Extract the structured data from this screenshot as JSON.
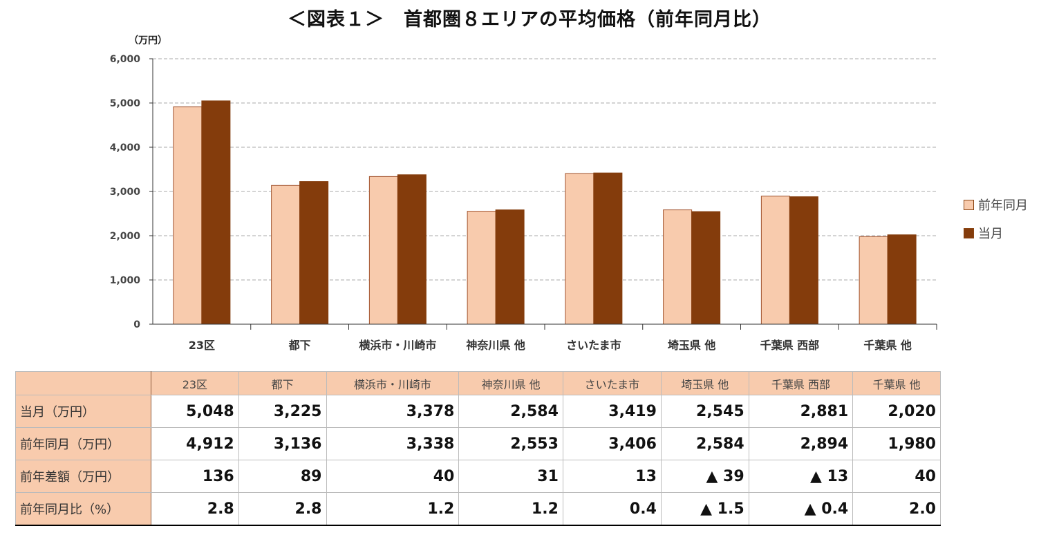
{
  "chart_data": {
    "type": "bar",
    "title": "＜図表１＞　首都圏８エリアの平均価格（前年同月比）",
    "ylabel": "（万円）",
    "ylim": [
      0,
      6000
    ],
    "yticks": [
      "0",
      "1,000",
      "2,000",
      "3,000",
      "4,000",
      "5,000",
      "6,000"
    ],
    "grid": true,
    "legend_position": "right",
    "categories": [
      "23区",
      "都下",
      "横浜市・川崎市",
      "神奈川県 他",
      "さいたま市",
      "埼玉県 他",
      "千葉県 西部",
      "千葉県 他"
    ],
    "series": [
      {
        "name": "前年同月",
        "color": "#F8CBAD",
        "values": [
          4912,
          3136,
          3338,
          2553,
          3406,
          2584,
          2894,
          1980
        ]
      },
      {
        "name": "当月",
        "color": "#843C0C",
        "values": [
          5048,
          3225,
          3378,
          2584,
          3419,
          2545,
          2881,
          2020
        ]
      }
    ]
  },
  "table": {
    "headers": [
      "",
      "23区",
      "都下",
      "横浜市・川崎市",
      "神奈川県 他",
      "さいたま市",
      "埼玉県 他",
      "千葉県 西部",
      "千葉県 他"
    ],
    "rows": [
      {
        "label": "当月（万円）",
        "cells": [
          "5,048",
          "3,225",
          "3,378",
          "2,584",
          "3,419",
          "2,545",
          "2,881",
          "2,020"
        ]
      },
      {
        "label": "前年同月（万円）",
        "cells": [
          "4,912",
          "3,136",
          "3,338",
          "2,553",
          "3,406",
          "2,584",
          "2,894",
          "1,980"
        ]
      },
      {
        "label": "前年差額（万円）",
        "cells": [
          "136",
          "89",
          "40",
          "31",
          "13",
          "▲ 39",
          "▲ 13",
          "40"
        ]
      },
      {
        "label": "前年同月比（%）",
        "cells": [
          "2.8",
          "2.8",
          "1.2",
          "1.2",
          "0.4",
          "▲ 1.5",
          "▲ 0.4",
          "2.0"
        ]
      }
    ]
  }
}
